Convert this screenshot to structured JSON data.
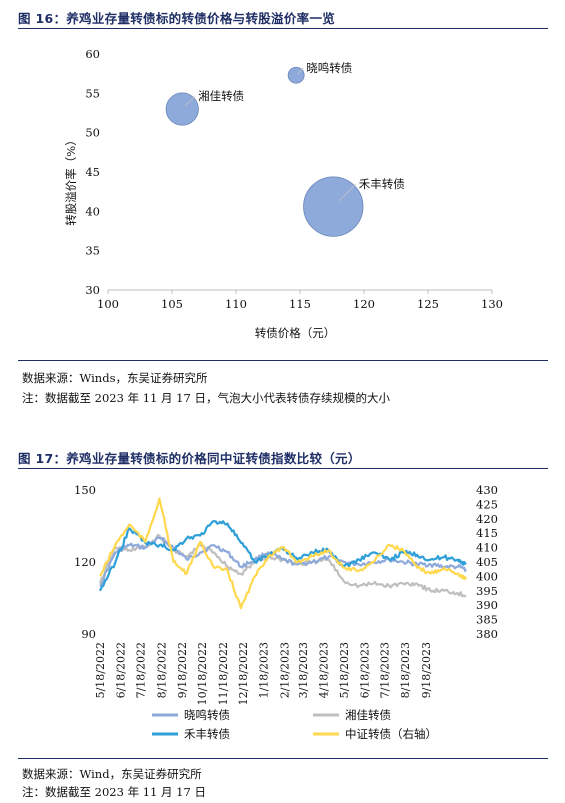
{
  "figure16": {
    "title": "图 16：养鸡业存量转债标的转债价格与转股溢价率一览",
    "source": "数据来源：Winds，东吴证券研究所",
    "note": "注：数据截至 2023 年 11 月 17 日，气泡大小代表转债存续规模的大小"
  },
  "figure17": {
    "title": "图 17：养鸡业存量转债标的价格同中证转债指数比较（元）",
    "source": "数据来源：Wind，东吴证券研究所",
    "note": "注：数据截至 2023 年 11 月 17 日"
  },
  "chart_data": [
    {
      "type": "scatter",
      "variant": "bubble",
      "xlabel": "转债价格（元）",
      "ylabel": "转股溢价率（%）",
      "xlim": [
        100,
        130
      ],
      "ylim": [
        30,
        60
      ],
      "xticks": [
        100,
        105,
        110,
        115,
        120,
        125,
        130
      ],
      "yticks": [
        30,
        35,
        40,
        45,
        50,
        55,
        60
      ],
      "points": [
        {
          "label": "晓鸣转债",
          "x": 114.7,
          "y": 57.3,
          "size": 1.0
        },
        {
          "label": "湘佳转债",
          "x": 105.8,
          "y": 53.0,
          "size": 4.3
        },
        {
          "label": "禾丰转债",
          "x": 117.6,
          "y": 40.6,
          "size": 14.9
        }
      ],
      "bubble_color": "#8eaadb",
      "grid": false
    },
    {
      "type": "line",
      "ylim": [
        90,
        150
      ],
      "yticks": [
        90,
        120,
        150
      ],
      "y2lim": [
        380,
        430
      ],
      "y2ticks": [
        380,
        385,
        390,
        395,
        400,
        405,
        410,
        415,
        420,
        425,
        430
      ],
      "x_start": "2022-05-18",
      "x_end": "2023-11-17",
      "xticks": [
        "5/18/2022",
        "6/18/2022",
        "7/18/2022",
        "8/18/2022",
        "9/18/2022",
        "10/18/2022",
        "11/18/2022",
        "12/18/2022",
        "1/18/2023",
        "2/18/2023",
        "3/18/2023",
        "4/18/2023",
        "5/18/2023",
        "6/18/2023",
        "7/18/2023",
        "8/18/2023",
        "9/18/2023"
      ],
      "legend_position": "bottom",
      "series": [
        {
          "name": "晓鸣转债",
          "color": "#8eaadb",
          "axis": "left",
          "x": [
            "2022-05-18",
            "2022-06-10",
            "2022-07-01",
            "2022-07-25",
            "2022-08-15",
            "2022-09-05",
            "2022-09-25",
            "2022-10-15",
            "2022-11-05",
            "2022-11-25",
            "2022-12-15",
            "2023-01-05",
            "2023-01-25",
            "2023-02-15",
            "2023-03-10",
            "2023-04-01",
            "2023-04-25",
            "2023-05-18",
            "2023-06-10",
            "2023-07-01",
            "2023-07-25",
            "2023-08-15",
            "2023-09-05",
            "2023-09-25",
            "2023-10-15",
            "2023-11-05",
            "2023-11-17"
          ],
          "values": [
            110,
            124,
            127,
            126,
            130,
            126,
            121,
            124,
            127,
            124,
            118,
            121,
            124,
            121,
            119,
            120,
            122,
            120,
            119,
            120,
            121,
            120,
            119,
            119,
            118,
            118,
            117
          ]
        },
        {
          "name": "湘佳转债",
          "color": "#bfbfbf",
          "axis": "left",
          "x": [
            "2022-05-18",
            "2022-06-10",
            "2022-07-01",
            "2022-07-25",
            "2022-08-15",
            "2022-09-05",
            "2022-09-25",
            "2022-10-15",
            "2022-11-05",
            "2022-11-25",
            "2022-12-15",
            "2023-01-05",
            "2023-01-25",
            "2023-02-15",
            "2023-03-10",
            "2023-04-01",
            "2023-04-25",
            "2023-05-18",
            "2023-06-10",
            "2023-07-01",
            "2023-07-25",
            "2023-08-15",
            "2023-09-05",
            "2023-09-25",
            "2023-10-15",
            "2023-11-05",
            "2023-11-17"
          ],
          "values": [
            111,
            126,
            125,
            126,
            131,
            125,
            122,
            127,
            124,
            118,
            115,
            120,
            122,
            121,
            119,
            120,
            121,
            112,
            110,
            111,
            110,
            111,
            111,
            108,
            108,
            107,
            106
          ]
        },
        {
          "name": "禾丰转债",
          "color": "#2e9fd8",
          "axis": "left",
          "x": [
            "2022-05-18",
            "2022-06-10",
            "2022-07-01",
            "2022-07-25",
            "2022-08-15",
            "2022-09-05",
            "2022-09-25",
            "2022-10-15",
            "2022-11-05",
            "2022-11-25",
            "2022-12-15",
            "2023-01-05",
            "2023-01-25",
            "2023-02-15",
            "2023-03-10",
            "2023-04-01",
            "2023-04-25",
            "2023-05-18",
            "2023-06-10",
            "2023-07-01",
            "2023-07-25",
            "2023-08-15",
            "2023-09-05",
            "2023-09-25",
            "2023-10-15",
            "2023-11-05",
            "2023-11-17"
          ],
          "values": [
            108,
            120,
            134,
            128,
            127,
            125,
            130,
            131,
            137,
            136,
            128,
            120,
            123,
            126,
            121,
            124,
            125,
            118,
            121,
            124,
            121,
            124,
            123,
            121,
            122,
            121,
            119
          ]
        },
        {
          "name": "中证转债（右轴）",
          "color": "#ffd84d",
          "axis": "right",
          "x": [
            "2022-05-18",
            "2022-06-10",
            "2022-07-01",
            "2022-07-25",
            "2022-08-15",
            "2022-09-05",
            "2022-09-25",
            "2022-10-15",
            "2022-11-05",
            "2022-11-25",
            "2022-12-15",
            "2023-01-05",
            "2023-01-25",
            "2023-02-15",
            "2023-03-10",
            "2023-04-01",
            "2023-04-25",
            "2023-05-18",
            "2023-06-10",
            "2023-07-01",
            "2023-07-25",
            "2023-08-15",
            "2023-09-05",
            "2023-09-25",
            "2023-10-15",
            "2023-11-05",
            "2023-11-17"
          ],
          "values": [
            400,
            411,
            418,
            412,
            427,
            405,
            401,
            412,
            403,
            402,
            389,
            400,
            407,
            410,
            405,
            407,
            409,
            403,
            402,
            405,
            411,
            409,
            403,
            401,
            403,
            401,
            399
          ]
        }
      ]
    }
  ]
}
